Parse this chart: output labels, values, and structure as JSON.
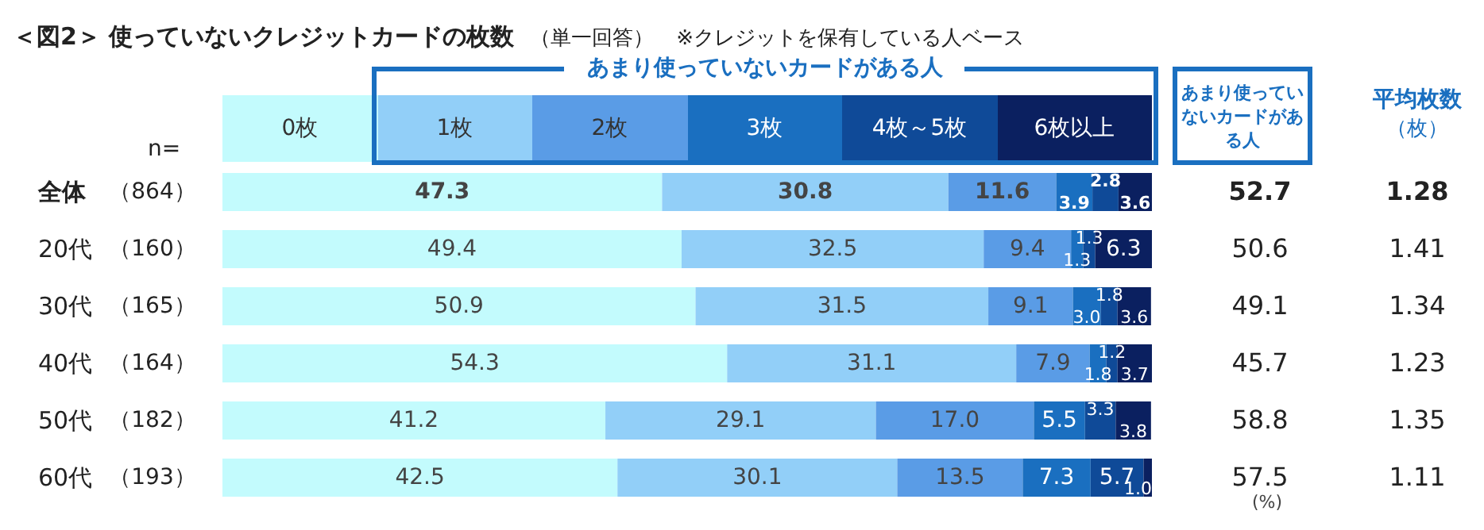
{
  "chart_data": {
    "type": "bar",
    "orientation": "horizontal",
    "stacked": true,
    "title": "＜図2＞ 使っていないクレジットカードの枚数",
    "subtitle": "（単一回答）",
    "categories": [
      "全体",
      "20代",
      "30代",
      "40代",
      "50代",
      "60代"
    ],
    "series": [
      {
        "name": "0枚",
        "color": "#c3fbfd",
        "values": [
          47.3,
          49.4,
          50.9,
          54.3,
          41.2,
          42.5
        ],
        "value_labels": [
          "47.3",
          "49.4",
          "50.9",
          "54.3",
          "41.2",
          "42.5"
        ]
      },
      {
        "name": "1枚",
        "color": "#92cff8",
        "values": [
          30.8,
          32.5,
          31.5,
          31.1,
          29.1,
          30.1
        ],
        "value_labels": [
          "30.8",
          "32.5",
          "31.5",
          "31.1",
          "29.1",
          "30.1"
        ]
      },
      {
        "name": "2枚",
        "color": "#5a9ce6",
        "values": [
          11.6,
          9.4,
          9.1,
          7.9,
          17.0,
          13.5
        ],
        "value_labels": [
          "11.6",
          "9.4",
          "9.1",
          "7.9",
          "17.0",
          "13.5"
        ]
      },
      {
        "name": "3枚",
        "color": "#1a6fc0",
        "values": [
          3.9,
          1.3,
          3.0,
          1.8,
          5.5,
          7.3
        ],
        "value_labels": [
          "3.9",
          "1.3",
          "3.0",
          "1.8",
          "5.5",
          "7.3"
        ]
      },
      {
        "name": "4枚～5枚",
        "color": "#0f4a98",
        "values": [
          2.8,
          1.3,
          1.8,
          1.2,
          3.3,
          5.7
        ],
        "value_labels": [
          "2.8",
          "1.3",
          "1.8",
          "1.2",
          "3.3",
          "5.7"
        ]
      },
      {
        "name": "6枚以上",
        "color": "#0b2060",
        "values": [
          3.6,
          6.3,
          3.6,
          3.7,
          3.8,
          1.0
        ],
        "value_labels": [
          "3.6",
          "6.3",
          "3.6",
          "3.7",
          "3.8",
          "1.0"
        ]
      }
    ],
    "xlim": [
      0,
      100
    ],
    "tick_labels": "y",
    "legend": "top",
    "legend_title": "あまり使っていないカードがある人",
    "annotations": [
      "（864）",
      "（160）",
      "（165）",
      "（164）",
      "（182）",
      "（193）",
      "52.7",
      "50.6",
      "49.1",
      "45.7",
      "58.8",
      "57.5",
      "1.28",
      "1.41",
      "1.34",
      "1.23",
      "1.35",
      "1.11",
      "n=",
      "あまり使っていないカードがある人",
      "平均枚数",
      "（枚）",
      "(%)",
      "※クレジットを保有している人ベース"
    ]
  }
}
